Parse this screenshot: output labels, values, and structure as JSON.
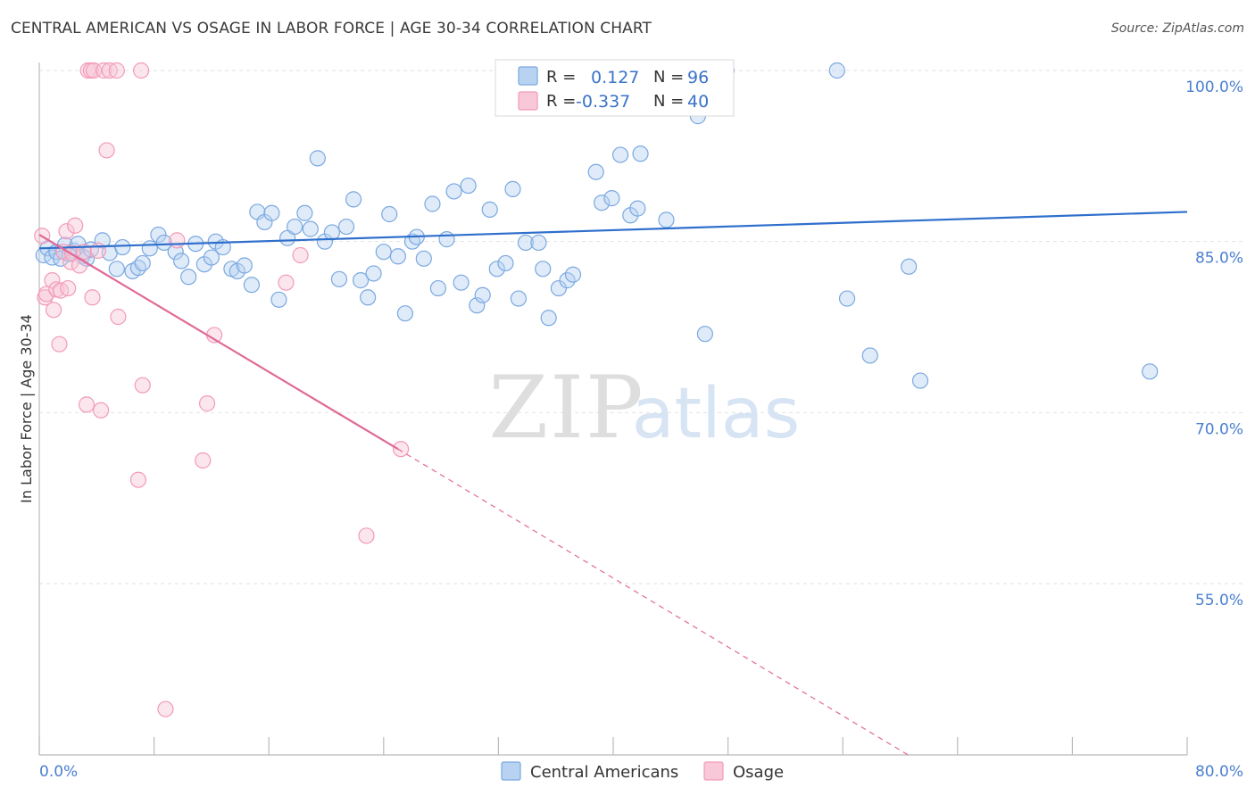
{
  "header": {
    "title": "CENTRAL AMERICAN VS OSAGE IN LABOR FORCE | AGE 30-34 CORRELATION CHART",
    "source": "Source: ZipAtlas.com"
  },
  "watermark": {
    "zip": "ZIP",
    "atlas": "atlas"
  },
  "legend": {
    "r_label": "R =",
    "n_label": "N =",
    "central": {
      "r": "0.127",
      "n": "96",
      "color": "#a8c8f0"
    },
    "osage": {
      "r": "-0.337",
      "n": "40",
      "color": "#f5b8cc"
    }
  },
  "bottom_legend": {
    "central": "Central Americans",
    "osage": "Osage"
  },
  "chart_data": {
    "type": "scatter",
    "title": "CENTRAL AMERICAN VS OSAGE IN LABOR FORCE | AGE 30-34 CORRELATION CHART",
    "xlabel": "",
    "ylabel": "In Labor Force | Age 30-34",
    "xlim": [
      0,
      80
    ],
    "ylim": [
      42,
      101.5
    ],
    "x_tick_labels": [
      "0.0%",
      "80.0%"
    ],
    "y_ticks": [
      55,
      70,
      85,
      100
    ],
    "y_tick_labels": [
      "55.0%",
      "70.0%",
      "85.0%",
      "100.0%"
    ],
    "grid": true,
    "series": [
      {
        "name": "Central Americans",
        "color": "#7aa8e0",
        "trend": {
          "x0": 0,
          "y0": 84.4,
          "x1": 80,
          "y1": 87.6,
          "color": "#2f6fcc"
        },
        "points": [
          [
            0.3,
            83.8
          ],
          [
            0.6,
            84.4
          ],
          [
            0.9,
            83.6
          ],
          [
            1.2,
            84.1
          ],
          [
            1.5,
            83.5
          ],
          [
            1.8,
            84.7
          ],
          [
            2.1,
            83.9
          ],
          [
            2.4,
            84.2
          ],
          [
            2.7,
            84.8
          ],
          [
            3.0,
            83.7
          ],
          [
            3.3,
            83.5
          ],
          [
            3.6,
            84.3
          ],
          [
            4.4,
            85.1
          ],
          [
            4.9,
            84.0
          ],
          [
            5.4,
            82.6
          ],
          [
            5.8,
            84.5
          ],
          [
            6.5,
            82.4
          ],
          [
            6.9,
            82.7
          ],
          [
            7.2,
            83.1
          ],
          [
            7.7,
            84.4
          ],
          [
            8.3,
            85.6
          ],
          [
            8.7,
            84.9
          ],
          [
            9.5,
            84.1
          ],
          [
            9.9,
            83.3
          ],
          [
            10.4,
            81.9
          ],
          [
            10.9,
            84.8
          ],
          [
            11.5,
            83.0
          ],
          [
            12.0,
            83.6
          ],
          [
            12.3,
            85.0
          ],
          [
            12.8,
            84.5
          ],
          [
            13.4,
            82.6
          ],
          [
            13.8,
            82.4
          ],
          [
            14.3,
            82.9
          ],
          [
            14.8,
            81.2
          ],
          [
            15.2,
            87.6
          ],
          [
            15.7,
            86.7
          ],
          [
            16.2,
            87.5
          ],
          [
            16.7,
            79.9
          ],
          [
            17.3,
            85.3
          ],
          [
            17.8,
            86.3
          ],
          [
            18.5,
            87.5
          ],
          [
            18.9,
            86.1
          ],
          [
            19.4,
            92.3
          ],
          [
            19.9,
            85.0
          ],
          [
            20.4,
            85.8
          ],
          [
            20.9,
            81.7
          ],
          [
            21.4,
            86.3
          ],
          [
            21.9,
            88.7
          ],
          [
            22.4,
            81.6
          ],
          [
            22.9,
            80.1
          ],
          [
            23.3,
            82.2
          ],
          [
            24.0,
            84.1
          ],
          [
            24.4,
            87.4
          ],
          [
            25.0,
            83.7
          ],
          [
            25.5,
            78.7
          ],
          [
            26.0,
            85.0
          ],
          [
            26.3,
            85.4
          ],
          [
            26.8,
            83.5
          ],
          [
            27.4,
            88.3
          ],
          [
            27.8,
            80.9
          ],
          [
            28.4,
            85.2
          ],
          [
            28.9,
            89.4
          ],
          [
            29.4,
            81.4
          ],
          [
            29.9,
            89.9
          ],
          [
            30.5,
            79.4
          ],
          [
            30.9,
            80.3
          ],
          [
            31.4,
            87.8
          ],
          [
            31.9,
            82.6
          ],
          [
            32.5,
            83.1
          ],
          [
            33.0,
            89.6
          ],
          [
            33.4,
            80.0
          ],
          [
            33.9,
            84.9
          ],
          [
            34.8,
            84.9
          ],
          [
            35.1,
            82.6
          ],
          [
            35.5,
            78.3
          ],
          [
            36.2,
            80.9
          ],
          [
            36.8,
            81.6
          ],
          [
            37.2,
            82.1
          ],
          [
            38.2,
            96.9
          ],
          [
            38.8,
            91.1
          ],
          [
            39.2,
            88.4
          ],
          [
            39.9,
            88.8
          ],
          [
            40.5,
            92.6
          ],
          [
            41.2,
            87.3
          ],
          [
            41.7,
            87.9
          ],
          [
            41.9,
            92.7
          ],
          [
            43.7,
            86.9
          ],
          [
            45.9,
            96.0
          ],
          [
            46.4,
            76.9
          ],
          [
            47.9,
            100.0
          ],
          [
            55.6,
            100.0
          ],
          [
            56.3,
            80.0
          ],
          [
            57.9,
            75.0
          ],
          [
            60.6,
            82.8
          ],
          [
            61.4,
            72.8
          ],
          [
            77.4,
            73.6
          ]
        ]
      },
      {
        "name": "Osage",
        "color": "#f29ab8",
        "trend": {
          "x0": 0,
          "y0": 85.6,
          "x1": 25,
          "y1": 66.8,
          "color": "#e06a96",
          "dash_to": {
            "x": 80,
            "y": 25.3
          }
        },
        "points": [
          [
            0.2,
            85.5
          ],
          [
            0.4,
            80.1
          ],
          [
            0.5,
            80.4
          ],
          [
            0.9,
            81.6
          ],
          [
            1.0,
            79.0
          ],
          [
            1.2,
            80.8
          ],
          [
            1.4,
            76.0
          ],
          [
            1.5,
            80.7
          ],
          [
            1.7,
            84.1
          ],
          [
            1.9,
            85.9
          ],
          [
            2.0,
            80.9
          ],
          [
            2.2,
            83.2
          ],
          [
            2.3,
            84.0
          ],
          [
            2.5,
            86.4
          ],
          [
            2.8,
            82.9
          ],
          [
            3.1,
            84.1
          ],
          [
            3.3,
            70.7
          ],
          [
            3.4,
            100.0
          ],
          [
            3.6,
            100.0
          ],
          [
            3.7,
            80.1
          ],
          [
            3.8,
            100.0
          ],
          [
            4.1,
            84.2
          ],
          [
            4.3,
            70.2
          ],
          [
            4.5,
            100.0
          ],
          [
            4.7,
            93.0
          ],
          [
            4.9,
            100.0
          ],
          [
            5.4,
            100.0
          ],
          [
            5.5,
            78.4
          ],
          [
            6.9,
            64.1
          ],
          [
            7.1,
            100.0
          ],
          [
            7.2,
            72.4
          ],
          [
            8.8,
            44.0
          ],
          [
            9.6,
            85.1
          ],
          [
            11.4,
            65.8
          ],
          [
            11.7,
            70.8
          ],
          [
            12.2,
            76.8
          ],
          [
            17.2,
            81.4
          ],
          [
            18.2,
            83.8
          ],
          [
            22.8,
            59.2
          ],
          [
            25.2,
            66.8
          ]
        ]
      }
    ]
  }
}
